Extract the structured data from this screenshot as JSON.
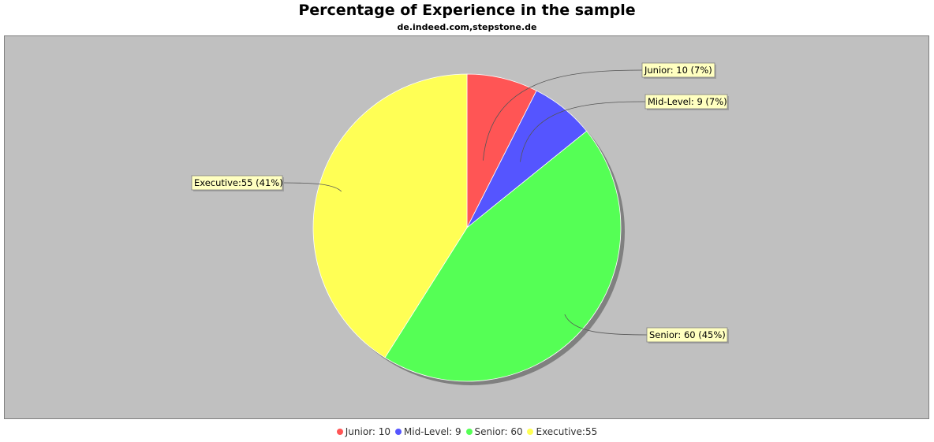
{
  "chart_data": {
    "type": "pie",
    "title": "Percentage of Experience in the sample",
    "subtitle": "de.indeed.com,stepstone.de",
    "slices": [
      {
        "label": "Junior: 10 (7%)",
        "legend": "Junior: 10",
        "value": 10,
        "color": "#ff5555"
      },
      {
        "label": "Mid-Level: 9 (7%)",
        "legend": "Mid-Level: 9",
        "value": 9,
        "color": "#5555ff"
      },
      {
        "label": "Senior: 60 (45%)",
        "legend": "Senior: 60",
        "value": 60,
        "color": "#55ff55"
      },
      {
        "label": "Executive:55 (41%)",
        "legend": "Executive:55",
        "value": 55,
        "color": "#ffff55"
      }
    ],
    "legend_position": "bottom"
  }
}
